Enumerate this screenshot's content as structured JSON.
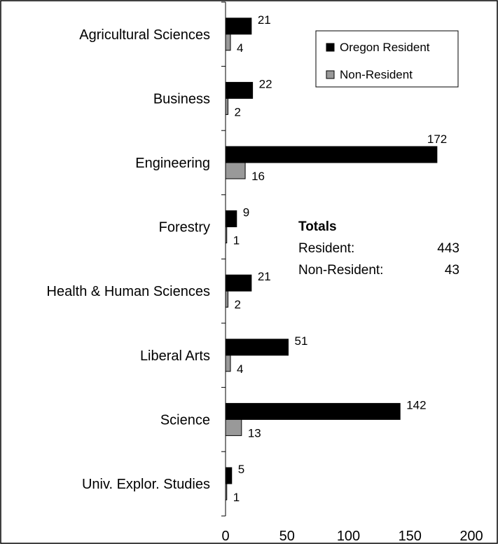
{
  "chart_data": {
    "type": "bar",
    "orientation": "horizontal",
    "categories": [
      "Agricultural Sciences",
      "Business",
      "Engineering",
      "Forestry",
      "Health & Human Sciences",
      "Liberal Arts",
      "Science",
      "Univ. Explor. Studies"
    ],
    "series": [
      {
        "name": "Oregon Resident",
        "color": "#000000",
        "values": [
          21,
          22,
          172,
          9,
          21,
          51,
          142,
          5
        ]
      },
      {
        "name": "Non-Resident",
        "color": "#999999",
        "values": [
          4,
          2,
          16,
          1,
          2,
          4,
          13,
          1
        ]
      }
    ],
    "xlim": [
      0,
      200
    ],
    "x_ticks": [
      0,
      50,
      100,
      150,
      200
    ],
    "legend_placement": "top-right",
    "grid": false,
    "totals": {
      "title": "Totals",
      "rows": [
        {
          "label": "Resident:",
          "value": "443"
        },
        {
          "label": "Non-Resident:",
          "value": "43"
        }
      ]
    }
  }
}
